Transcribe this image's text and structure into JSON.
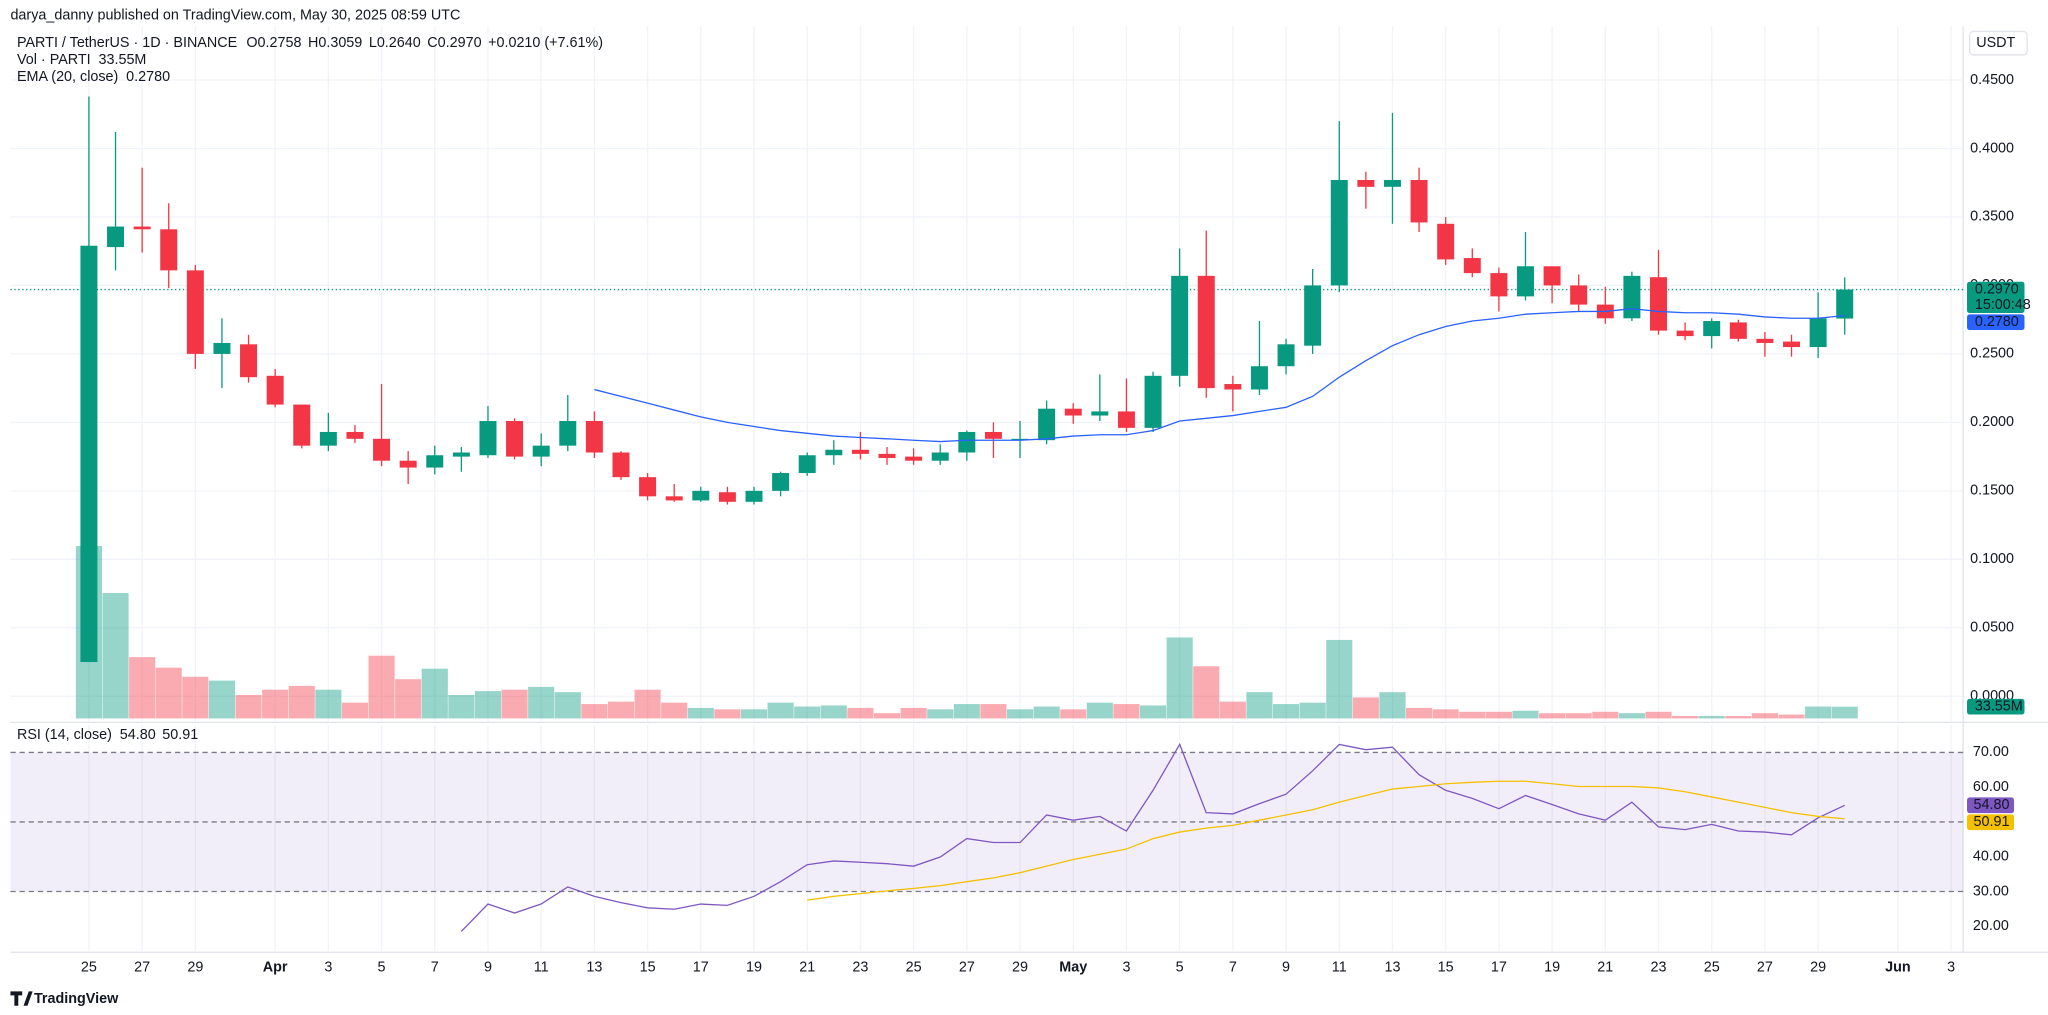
{
  "header": {
    "publisher": "darya_danny published on TradingView.com, May 30, 2025 08:59 UTC",
    "currency": "USDT",
    "logo": "TradingView",
    "countdown": "15:00:48"
  },
  "chart_data": [
    {
      "type": "candlestick",
      "title": "PARTI / TetherUS · 1D · BINANCE",
      "legend": [
        "O",
        "0.2758",
        "H",
        "0.3059",
        "L",
        "0.2640",
        "C",
        "0.2970",
        "+0.0210 (+7.61%)"
      ],
      "up_color": "#089981",
      "down_color": "#f23645",
      "open": [
        0.025,
        0.328,
        0.343,
        0.341,
        0.311,
        0.25,
        0.257,
        0.234,
        0.213,
        0.183,
        0.193,
        0.188,
        0.172,
        0.167,
        0.175,
        0.176,
        0.201,
        0.175,
        0.183,
        0.201,
        0.178,
        0.16,
        0.146,
        0.143,
        0.149,
        0.142,
        0.15,
        0.163,
        0.176,
        0.18,
        0.177,
        0.175,
        0.172,
        0.178,
        0.193,
        0.187,
        0.187,
        0.21,
        0.205,
        0.208,
        0.196,
        0.234,
        0.307,
        0.228,
        0.224,
        0.241,
        0.256,
        0.3,
        0.377,
        0.372,
        0.377,
        0.345,
        0.32,
        0.309,
        0.292,
        0.314,
        0.3,
        0.286,
        0.276,
        0.306,
        0.267,
        0.263,
        0.273,
        0.261,
        0.259,
        0.255,
        0.2758
      ],
      "high": [
        0.438,
        0.412,
        0.386,
        0.36,
        0.315,
        0.276,
        0.264,
        0.239,
        0.213,
        0.207,
        0.198,
        0.228,
        0.179,
        0.183,
        0.182,
        0.212,
        0.203,
        0.192,
        0.22,
        0.208,
        0.179,
        0.163,
        0.155,
        0.153,
        0.153,
        0.153,
        0.164,
        0.178,
        0.187,
        0.193,
        0.182,
        0.181,
        0.184,
        0.194,
        0.2,
        0.201,
        0.216,
        0.214,
        0.235,
        0.232,
        0.237,
        0.327,
        0.34,
        0.234,
        0.274,
        0.261,
        0.312,
        0.42,
        0.383,
        0.426,
        0.386,
        0.35,
        0.327,
        0.313,
        0.339,
        0.314,
        0.308,
        0.299,
        0.31,
        0.326,
        0.273,
        0.276,
        0.275,
        0.266,
        0.264,
        0.295,
        0.3059
      ],
      "low": [
        0.025,
        0.311,
        0.324,
        0.298,
        0.239,
        0.225,
        0.229,
        0.211,
        0.181,
        0.179,
        0.185,
        0.168,
        0.155,
        0.162,
        0.164,
        0.174,
        0.173,
        0.168,
        0.179,
        0.174,
        0.158,
        0.143,
        0.142,
        0.142,
        0.14,
        0.14,
        0.146,
        0.161,
        0.169,
        0.173,
        0.169,
        0.169,
        0.169,
        0.172,
        0.174,
        0.174,
        0.184,
        0.199,
        0.201,
        0.193,
        0.193,
        0.226,
        0.218,
        0.208,
        0.22,
        0.235,
        0.25,
        0.295,
        0.356,
        0.345,
        0.339,
        0.315,
        0.306,
        0.281,
        0.289,
        0.287,
        0.281,
        0.272,
        0.274,
        0.264,
        0.26,
        0.254,
        0.259,
        0.248,
        0.248,
        0.247,
        0.264
      ],
      "close": [
        0.329,
        0.343,
        0.341,
        0.311,
        0.25,
        0.258,
        0.233,
        0.213,
        0.183,
        0.193,
        0.188,
        0.172,
        0.167,
        0.176,
        0.178,
        0.201,
        0.175,
        0.183,
        0.201,
        0.178,
        0.16,
        0.146,
        0.143,
        0.15,
        0.142,
        0.15,
        0.163,
        0.176,
        0.18,
        0.177,
        0.174,
        0.172,
        0.178,
        0.193,
        0.188,
        0.188,
        0.21,
        0.205,
        0.208,
        0.196,
        0.234,
        0.307,
        0.225,
        0.224,
        0.241,
        0.257,
        0.3,
        0.377,
        0.372,
        0.377,
        0.346,
        0.319,
        0.309,
        0.292,
        0.314,
        0.3,
        0.286,
        0.276,
        0.307,
        0.267,
        0.263,
        0.274,
        0.261,
        0.258,
        0.255,
        0.276,
        0.297
      ],
      "close_label": "0.2970",
      "volume": {
        "name": "Vol · PARTI",
        "value_label": "33.55M",
        "values": [
          492,
          358,
          175,
          145,
          119,
          108,
          67,
          82,
          93,
          82,
          45,
          179,
          112,
          142,
          67,
          78,
          82,
          90,
          75,
          41,
          48,
          82,
          45,
          30,
          26,
          26,
          45,
          34,
          37,
          30,
          15,
          30,
          26,
          41,
          41,
          26,
          34,
          26,
          45,
          41,
          37,
          231,
          149,
          48,
          75,
          41,
          45,
          224,
          60,
          75,
          30,
          26,
          19,
          19,
          22,
          15,
          15,
          19,
          15,
          19,
          7,
          7,
          7,
          15,
          11,
          34,
          33.55
        ]
      },
      "ema": {
        "name": "EMA (20, close)",
        "color": "#2962ff",
        "value_label": "0.2780",
        "values": [
          null,
          null,
          null,
          null,
          null,
          null,
          null,
          null,
          null,
          null,
          null,
          null,
          null,
          null,
          null,
          null,
          null,
          null,
          null,
          0.224,
          0.219,
          0.214,
          0.209,
          0.204,
          0.2,
          0.197,
          0.194,
          0.192,
          0.19,
          0.189,
          0.188,
          0.187,
          0.186,
          0.187,
          0.187,
          0.187,
          0.188,
          0.19,
          0.191,
          0.191,
          0.194,
          0.201,
          0.203,
          0.205,
          0.208,
          0.211,
          0.219,
          0.233,
          0.245,
          0.256,
          0.264,
          0.27,
          0.274,
          0.276,
          0.279,
          0.28,
          0.281,
          0.281,
          0.283,
          0.281,
          0.28,
          0.28,
          0.279,
          0.277,
          0.276,
          0.276,
          0.278
        ]
      },
      "xlim": [
        -2.95,
        70.45
      ],
      "xticks": [
        {
          "value": 0,
          "label": "25"
        },
        {
          "value": 2,
          "label": "27"
        },
        {
          "value": 4,
          "label": "29"
        },
        {
          "value": 7,
          "label": "Apr"
        },
        {
          "value": 9,
          "label": "3"
        },
        {
          "value": 11,
          "label": "5"
        },
        {
          "value": 13,
          "label": "7"
        },
        {
          "value": 15,
          "label": "9"
        },
        {
          "value": 17,
          "label": "11"
        },
        {
          "value": 19,
          "label": "13"
        },
        {
          "value": 21,
          "label": "15"
        },
        {
          "value": 23,
          "label": "17"
        },
        {
          "value": 25,
          "label": "19"
        },
        {
          "value": 27,
          "label": "21"
        },
        {
          "value": 29,
          "label": "23"
        },
        {
          "value": 31,
          "label": "25"
        },
        {
          "value": 33,
          "label": "27"
        },
        {
          "value": 35,
          "label": "29"
        },
        {
          "value": 37,
          "label": "May"
        },
        {
          "value": 39,
          "label": "3"
        },
        {
          "value": 41,
          "label": "5"
        },
        {
          "value": 43,
          "label": "7"
        },
        {
          "value": 45,
          "label": "9"
        },
        {
          "value": 47,
          "label": "11"
        },
        {
          "value": 49,
          "label": "13"
        },
        {
          "value": 51,
          "label": "15"
        },
        {
          "value": 53,
          "label": "17"
        },
        {
          "value": 55,
          "label": "19"
        },
        {
          "value": 57,
          "label": "21"
        },
        {
          "value": 59,
          "label": "23"
        },
        {
          "value": 61,
          "label": "25"
        },
        {
          "value": 63,
          "label": "27"
        },
        {
          "value": 65,
          "label": "29"
        },
        {
          "value": 68,
          "label": "Jun"
        },
        {
          "value": 70,
          "label": "3"
        }
      ],
      "ylim": [
        -0.0181,
        0.4893
      ],
      "yticks": [
        {
          "value": 0,
          "label": "0.0000"
        },
        {
          "value": 0.05,
          "label": "0.0500"
        },
        {
          "value": 0.1,
          "label": "0.1000"
        },
        {
          "value": 0.15,
          "label": "0.1500"
        },
        {
          "value": 0.2,
          "label": "0.2000"
        },
        {
          "value": 0.25,
          "label": "0.2500"
        },
        {
          "value": 0.3,
          "label": "0.3000"
        },
        {
          "value": 0.35,
          "label": "0.3500"
        },
        {
          "value": 0.4,
          "label": "0.4000"
        },
        {
          "value": 0.45,
          "label": "0.4500"
        }
      ],
      "grid": true
    },
    {
      "type": "line",
      "title": "RSI (14, close)",
      "band": [
        30,
        70
      ],
      "band_color": "#7e57c2",
      "series": [
        {
          "color": "#7e57c2",
          "value_label": "54.80",
          "values": [
            null,
            null,
            null,
            null,
            null,
            null,
            null,
            null,
            null,
            null,
            null,
            null,
            null,
            null,
            18.5,
            26.4,
            23.8,
            26.4,
            31.3,
            28.6,
            26.8,
            25.3,
            24.9,
            26.4,
            26.0,
            28.6,
            32.8,
            37.7,
            38.8,
            38.4,
            38.0,
            37.3,
            39.9,
            45.2,
            44.1,
            44.1,
            52.0,
            50.5,
            51.6,
            47.4,
            59.1,
            72.3,
            52.7,
            52.3,
            55.3,
            58.0,
            64.7,
            72.3,
            70.8,
            71.5,
            63.6,
            59.1,
            56.8,
            53.8,
            57.6,
            55.0,
            52.3,
            50.5,
            55.7,
            48.6,
            47.8,
            49.3,
            47.4,
            47.1,
            46.3,
            51.2,
            54.8
          ]
        },
        {
          "color": "#f5c000",
          "value_label": "50.91",
          "values": [
            null,
            null,
            null,
            null,
            null,
            null,
            null,
            null,
            null,
            null,
            null,
            null,
            null,
            null,
            null,
            null,
            null,
            null,
            null,
            null,
            null,
            null,
            null,
            null,
            null,
            null,
            null,
            27.5,
            28.6,
            29.4,
            30.2,
            30.9,
            31.7,
            32.8,
            33.9,
            35.4,
            37.3,
            39.2,
            40.7,
            42.2,
            45.2,
            47.1,
            48.2,
            49.0,
            50.5,
            52.0,
            53.5,
            55.7,
            57.6,
            59.5,
            60.2,
            61.0,
            61.4,
            61.7,
            61.7,
            61.0,
            60.2,
            60.2,
            60.2,
            59.8,
            58.7,
            57.2,
            55.7,
            54.2,
            52.7,
            51.6,
            50.91
          ]
        }
      ],
      "ylim": [
        12.9,
        77.9
      ],
      "yticks": [
        {
          "value": 20,
          "label": "20.00"
        },
        {
          "value": 30,
          "label": "30.00"
        },
        {
          "value": 40,
          "label": "40.00"
        },
        {
          "value": 50,
          "label": "50.00"
        },
        {
          "value": 60,
          "label": "60.00"
        },
        {
          "value": 70,
          "label": "70.00"
        }
      ],
      "dashed": [
        30,
        50,
        70
      ]
    }
  ]
}
